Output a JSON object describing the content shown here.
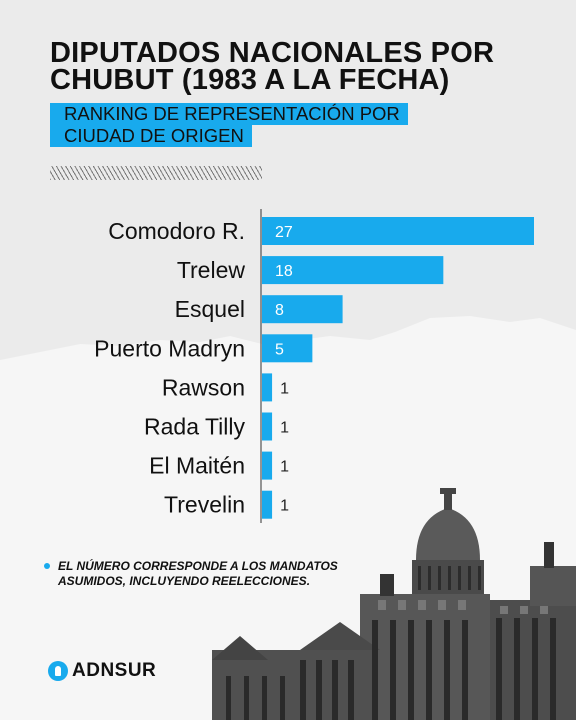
{
  "title": "DIPUTADOS NACIONALES POR CHUBUT (1983 A LA FECHA)",
  "subtitle_lines": [
    "RANKING DE REPRESENTACIÓN POR",
    "CIUDAD DE ORIGEN"
  ],
  "note": "EL NÚMERO CORRESPONDE A LOS MANDATOS ASUMIDOS, INCLUYENDO REELECCIONES.",
  "brand": "ADNSUR",
  "colors": {
    "bar": "#18aaed",
    "background": "#ebebeb",
    "text": "#111111"
  },
  "icons": {
    "logo": "location-pin-icon",
    "decorative": "congress-building-illustration"
  },
  "chart_data": {
    "type": "bar",
    "orientation": "horizontal",
    "title": "DIPUTADOS NACIONALES POR CHUBUT (1983 A LA FECHA)",
    "subtitle": "RANKING DE REPRESENTACIÓN POR CIUDAD DE ORIGEN",
    "categories": [
      "Comodoro R.",
      "Trelew",
      "Esquel",
      "Puerto Madryn",
      "Rawson",
      "Rada Tilly",
      "El Maitén",
      "Trevelin"
    ],
    "values": [
      27,
      18,
      8,
      5,
      1,
      1,
      1,
      1
    ],
    "xlabel": "",
    "ylabel": "",
    "grid": false,
    "data_labels": true
  }
}
